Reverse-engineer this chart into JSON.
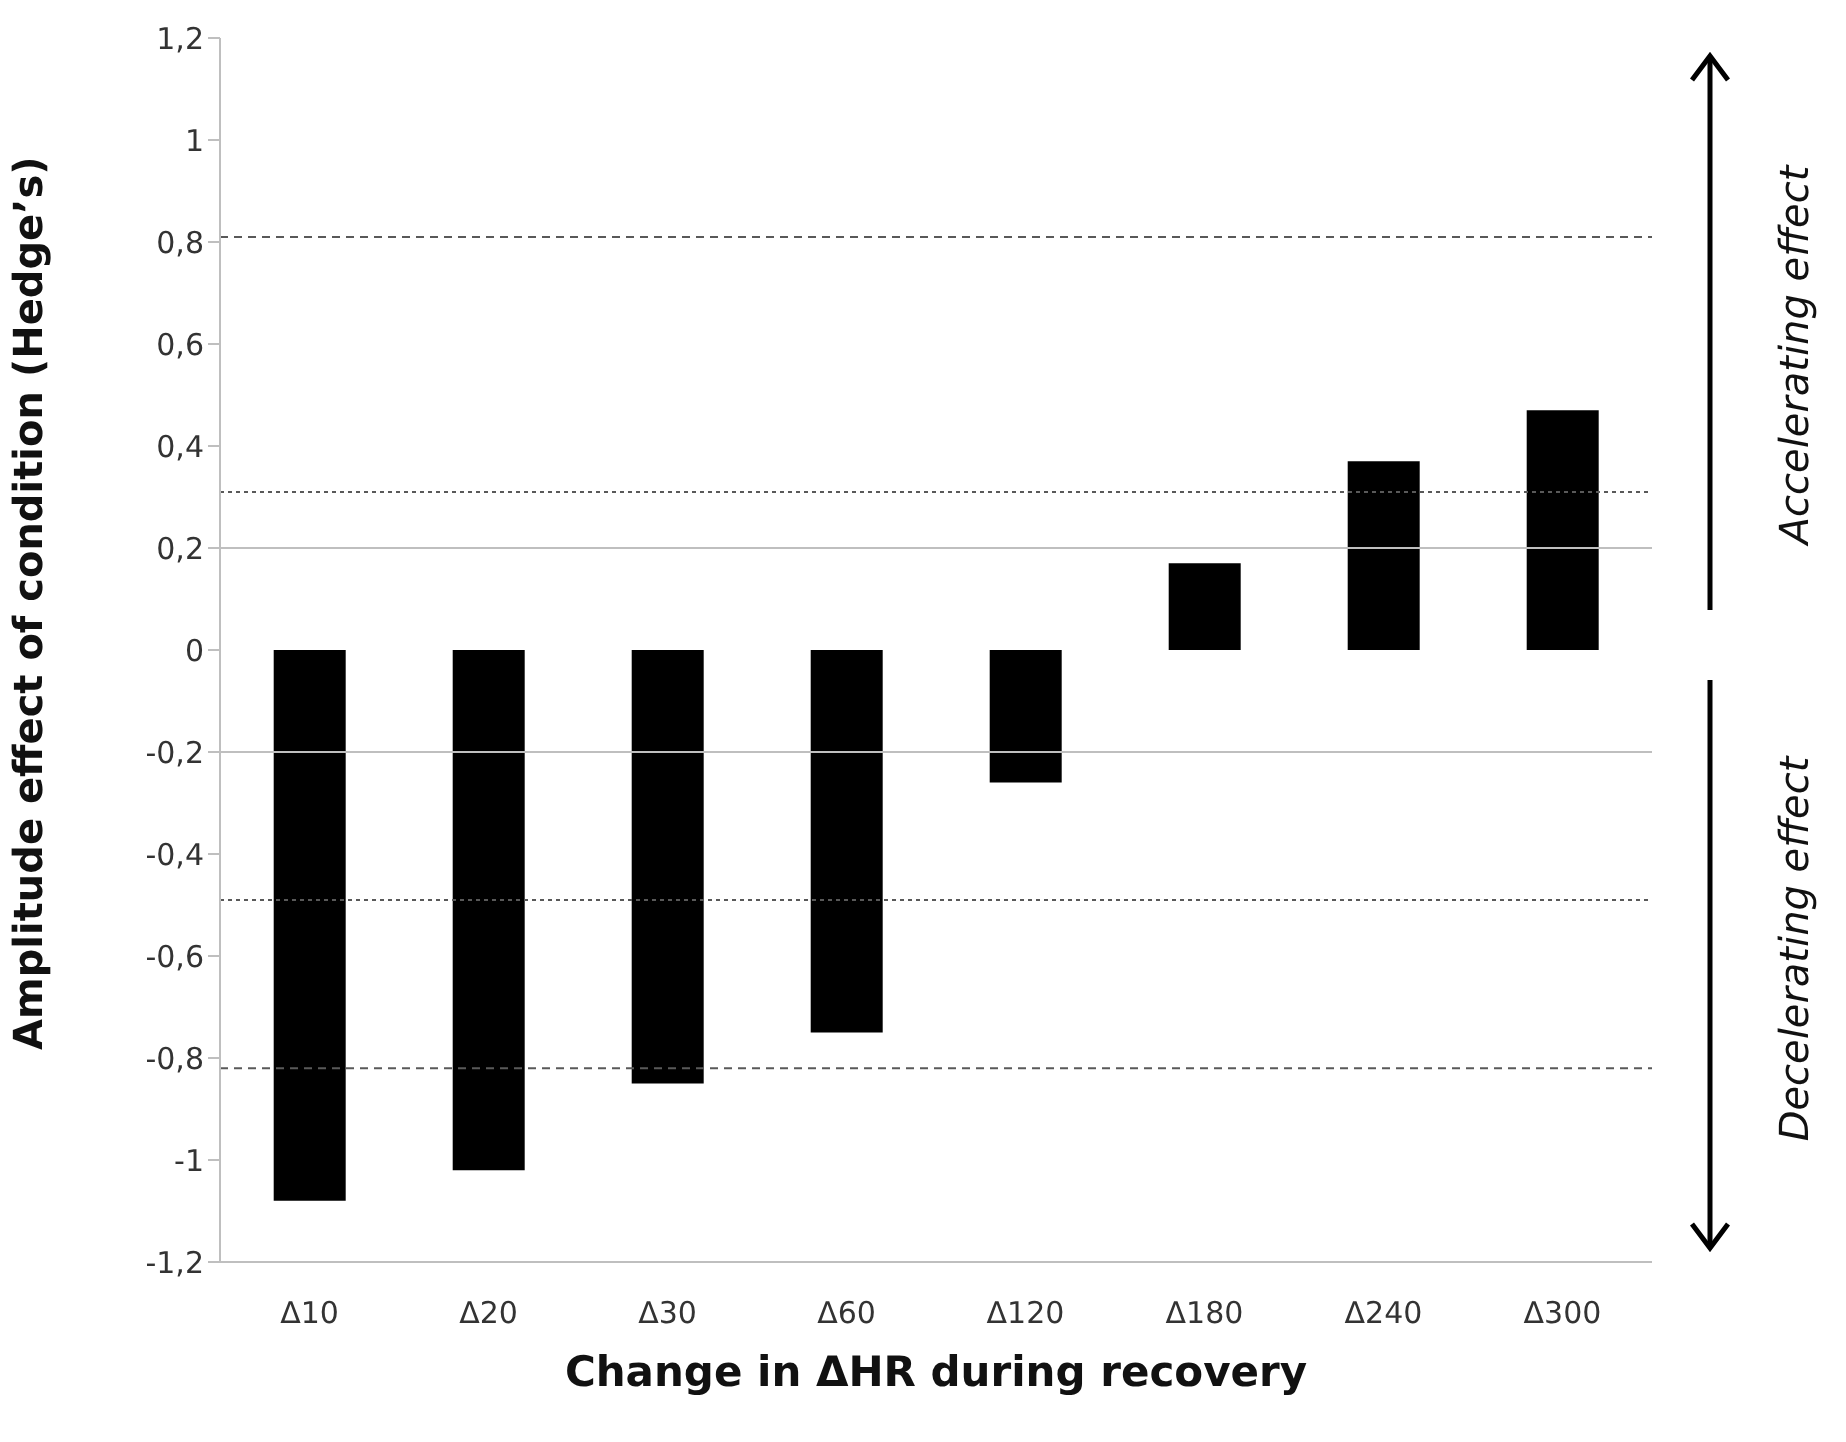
{
  "chart_data": {
    "type": "bar",
    "xlabel": "Change in ΔHR during recovery",
    "ylabel": "Amplitude effect of condition (Hedge’s)",
    "categories": [
      "Δ10",
      "Δ20",
      "Δ30",
      "Δ60",
      "Δ120",
      "Δ180",
      "Δ240",
      "Δ300"
    ],
    "values": [
      -1.08,
      -1.02,
      -0.85,
      -0.75,
      -0.26,
      0.17,
      0.37,
      0.47
    ],
    "color": "#000000",
    "ylim": [
      -1.2,
      1.2
    ],
    "yticks": [
      {
        "value": -1.2,
        "label": "-1,2"
      },
      -1,
      {
        "value": -0.8,
        "label": "-0,8"
      },
      {
        "value": -0.6,
        "label": "-0,6"
      },
      {
        "value": -0.4,
        "label": "-0,4"
      },
      {
        "value": -0.2,
        "label": "-0,2"
      },
      0,
      {
        "value": 0.2,
        "label": "0,2"
      },
      {
        "value": 0.4,
        "label": "0,4"
      },
      {
        "value": 0.6,
        "label": "0,6"
      },
      {
        "value": 0.8,
        "label": "0,8"
      },
      1,
      {
        "value": 1.2,
        "label": "1,2"
      }
    ],
    "ref_lines": [
      {
        "axis": "y",
        "value": 0.81,
        "color": "#595959",
        "line_style": "dashed"
      },
      {
        "axis": "y",
        "value": 0.31,
        "color": "#595959",
        "line_style": "dotted"
      },
      {
        "axis": "y",
        "value": 0.2,
        "color": "#bfbfbf",
        "line_style": "solid"
      },
      {
        "axis": "y",
        "value": -0.2,
        "color": "#bfbfbf",
        "line_style": "solid"
      },
      {
        "axis": "y",
        "value": -0.49,
        "color": "#595959",
        "line_style": "dotted"
      },
      {
        "axis": "y",
        "value": -0.82,
        "color": "#595959",
        "line_style": "dashed"
      }
    ],
    "annotations": [
      "Accelerating effect",
      "Decelerating effect"
    ]
  }
}
